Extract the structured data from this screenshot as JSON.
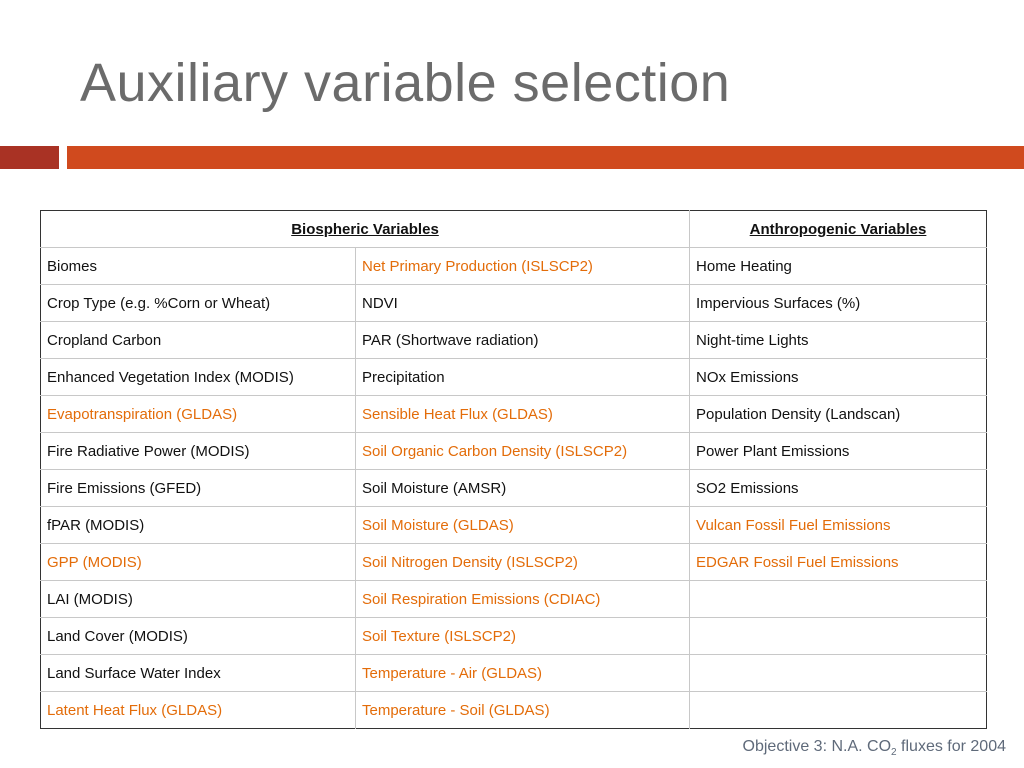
{
  "title": "Auxiliary variable selection",
  "colors": {
    "bar_left": "#a93224",
    "bar_right": "#d04a1e",
    "highlight_text": "#e36c09"
  },
  "table": {
    "headers": {
      "biospheric": "Biospheric Variables ",
      "anthropogenic": "Anthropogenic Variables"
    },
    "rows": [
      {
        "c1": "Biomes",
        "c2": "Net Primary Production (ISLSCP2)",
        "c3": "Home Heating"
      },
      {
        "c1": "Crop Type (e.g. %Corn or Wheat)",
        "c2": "NDVI",
        "c3": "Impervious Surfaces (%)"
      },
      {
        "c1": "Cropland Carbon",
        "c2": "PAR (Shortwave radiation)",
        "c3": "Night-time Lights"
      },
      {
        "c1": "Enhanced Vegetation Index (MODIS)",
        "c2": "Precipitation",
        "c3": "NOx Emissions"
      },
      {
        "c1": "Evapotranspiration (GLDAS)",
        "c2": "Sensible Heat Flux (GLDAS)",
        "c3": "Population Density (Landscan)"
      },
      {
        "c1": "Fire Radiative Power (MODIS)",
        "c2": "Soil Organic Carbon Density  (ISLSCP2)",
        "c3": "Power Plant Emissions"
      },
      {
        "c1": "Fire Emissions (GFED)",
        "c2": "Soil Moisture (AMSR)",
        "c3": "SO2 Emissions"
      },
      {
        "c1": "fPAR (MODIS)",
        "c2": "Soil Moisture (GLDAS)",
        "c3": "Vulcan Fossil Fuel Emissions"
      },
      {
        "c1": "GPP (MODIS)",
        "c2": "Soil Nitrogen Density (ISLSCP2)",
        "c3": "EDGAR Fossil Fuel Emissions"
      },
      {
        "c1": "LAI (MODIS)",
        "c2": "Soil Respiration Emissions (CDIAC)",
        "c3": ""
      },
      {
        "c1": "Land Cover (MODIS)",
        "c2": "Soil Texture (ISLSCP2)",
        "c3": ""
      },
      {
        "c1": "Land Surface Water Index",
        "c2": "Temperature - Air (GLDAS)",
        "c3": ""
      },
      {
        "c1": "Latent Heat Flux (GLDAS)",
        "c2": "Temperature - Soil (GLDAS)",
        "c3": ""
      }
    ]
  },
  "footer": {
    "prefix": "Objective 3:  N.A. CO",
    "subscript": "2",
    "suffix": " fluxes for 2004"
  }
}
